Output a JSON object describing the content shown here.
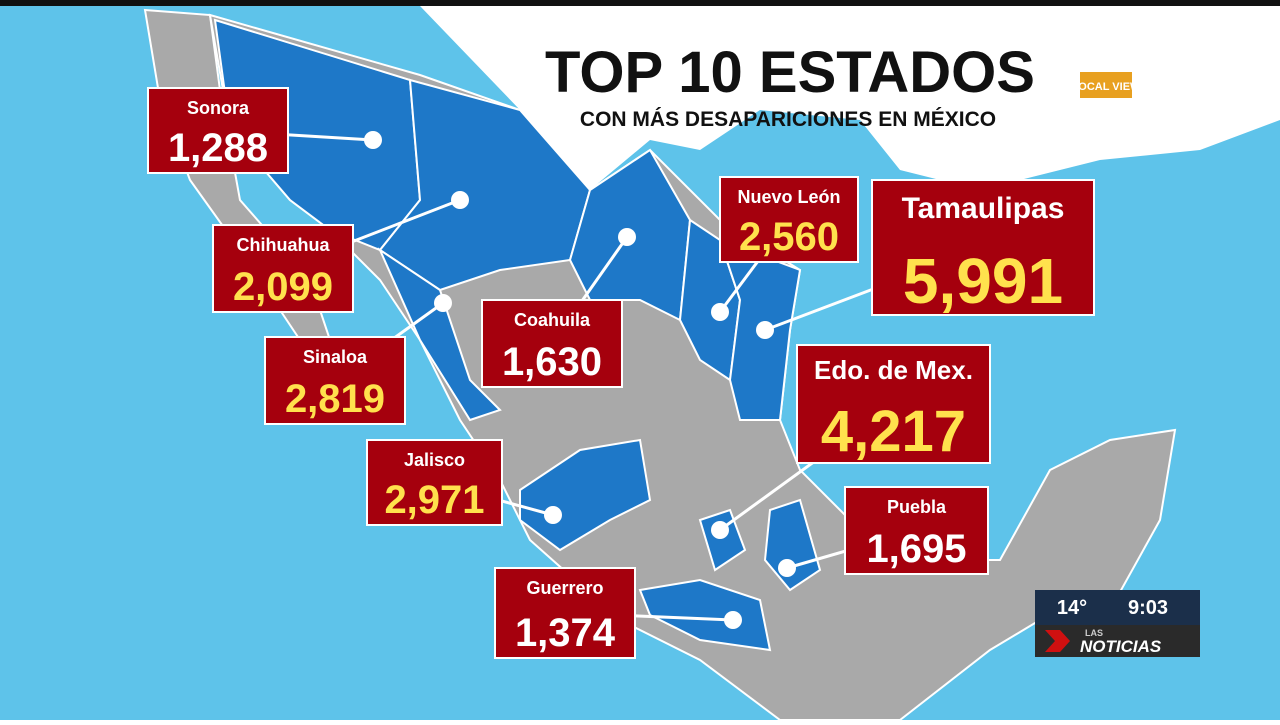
{
  "header": {
    "title": "TOP 10 ESTADOS",
    "subtitle": "CON MÁS DESAPARICIONES EN MÉXICO",
    "logo": "LOCAL VIEW"
  },
  "states": [
    {
      "name": "Sonora",
      "value": "1,288"
    },
    {
      "name": "Chihuahua",
      "value": "2,099"
    },
    {
      "name": "Sinaloa",
      "value": "2,819"
    },
    {
      "name": "Jalisco",
      "value": "2,971"
    },
    {
      "name": "Coahuila",
      "value": "1,630"
    },
    {
      "name": "Nuevo León",
      "value": "2,560"
    },
    {
      "name": "Tamaulipas",
      "value": "5,991"
    },
    {
      "name": "Edo. de Mex.",
      "value": "4,217"
    },
    {
      "name": "Puebla",
      "value": "1,695"
    },
    {
      "name": "Guerrero",
      "value": "1,374"
    }
  ],
  "overlay": {
    "temperature": "14°",
    "time": "9:03",
    "brand": "NOTICIAS",
    "brand_prefix": "LAS"
  }
}
